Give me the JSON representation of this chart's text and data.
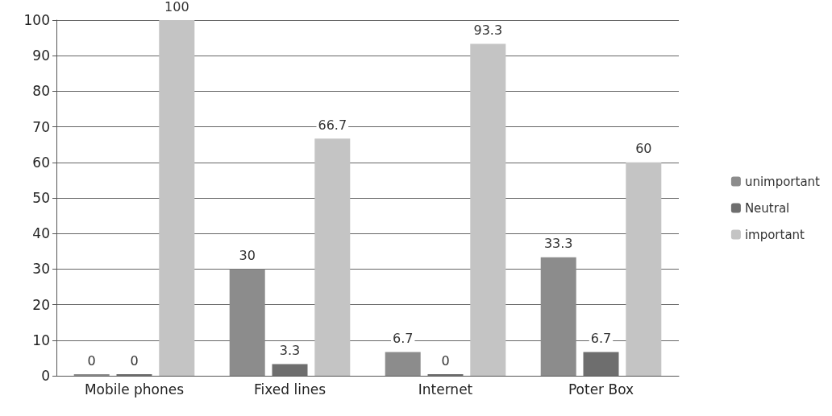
{
  "chart_data": {
    "type": "bar",
    "categories": [
      "Mobile phones",
      "Fixed lines",
      "Internet",
      "Poter Box"
    ],
    "series": [
      {
        "name": "unimportant",
        "color": "#8c8c8c",
        "values": [
          0,
          30,
          6.7,
          33.3
        ]
      },
      {
        "name": "Neutral",
        "color": "#6e6e6e",
        "values": [
          0,
          3.3,
          0,
          6.7
        ]
      },
      {
        "name": "important",
        "color": "#c4c4c4",
        "values": [
          100,
          66.7,
          93.3,
          60
        ]
      }
    ],
    "ylim": [
      0,
      100
    ],
    "yticks": [
      0,
      10,
      20,
      30,
      40,
      50,
      60,
      70,
      80,
      90,
      100
    ],
    "grid": "y",
    "legend": "right",
    "data_labels": true
  }
}
